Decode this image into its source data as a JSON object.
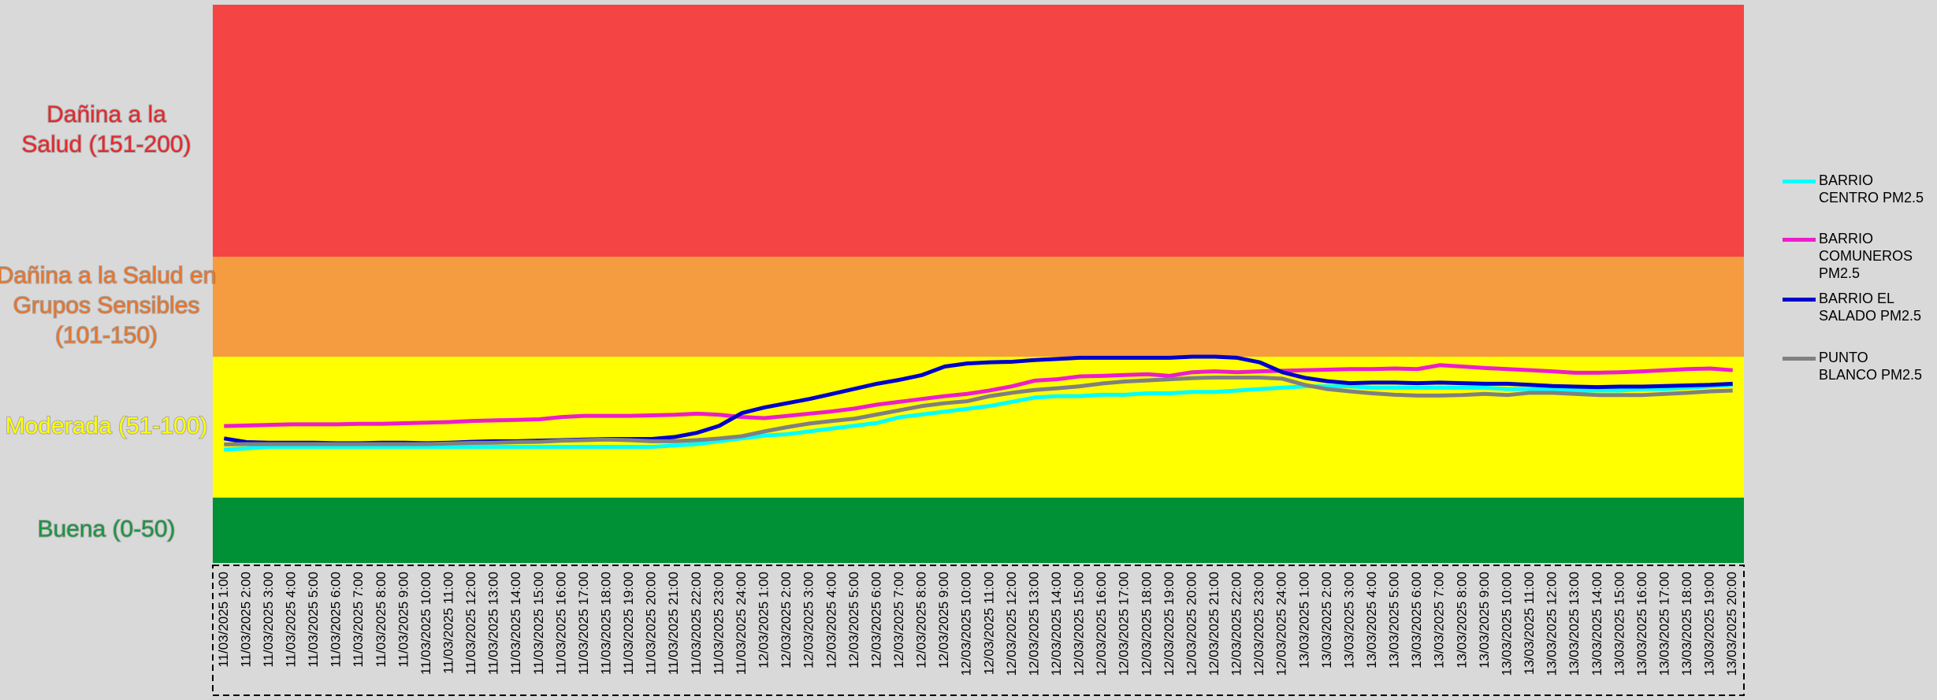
{
  "chart_data": {
    "type": "line",
    "ylim": [
      0,
      200
    ],
    "bands": [
      {
        "label": [
          "Buena (0-50)"
        ],
        "to": 50,
        "color": "#009036",
        "text_color": "#1a9440"
      },
      {
        "label": [
          "Moderada (51-100)"
        ],
        "to": 100,
        "color": "#ffff00",
        "text_color": "#ffff00"
      },
      {
        "label": [
          "Dañina a la Salud en",
          "Grupos Sensibles",
          "(101-150)"
        ],
        "to": 150,
        "color": "#f59b40",
        "text_color": "#e8742a"
      },
      {
        "label": [
          "Dañina a la",
          "Salud (151-200)"
        ],
        "to": 200,
        "color": "#f44444",
        "text_color": "#e8262a"
      }
    ],
    "categories": [
      "11/03/2025 1:00",
      "11/03/2025 2:00",
      "11/03/2025 3:00",
      "11/03/2025 4:00",
      "11/03/2025 5:00",
      "11/03/2025 6:00",
      "11/03/2025 7:00",
      "11/03/2025 8:00",
      "11/03/2025 9:00",
      "11/03/2025 10:00",
      "11/03/2025 11:00",
      "11/03/2025 12:00",
      "11/03/2025 13:00",
      "11/03/2025 14:00",
      "11/03/2025 15:00",
      "11/03/2025 16:00",
      "11/03/2025 17:00",
      "11/03/2025 18:00",
      "11/03/2025 19:00",
      "11/03/2025 20:00",
      "11/03/2025 21:00",
      "11/03/2025 22:00",
      "11/03/2025 23:00",
      "11/03/2025 24:00",
      "12/03/2025 1:00",
      "12/03/2025 2:00",
      "12/03/2025 3:00",
      "12/03/2025 4:00",
      "12/03/2025 5:00",
      "12/03/2025 6:00",
      "12/03/2025 7:00",
      "12/03/2025 8:00",
      "12/03/2025 9:00",
      "12/03/2025 10:00",
      "12/03/2025 11:00",
      "12/03/2025 12:00",
      "12/03/2025 13:00",
      "12/03/2025 14:00",
      "12/03/2025 15:00",
      "12/03/2025 16:00",
      "12/03/2025 17:00",
      "12/03/2025 18:00",
      "12/03/2025 19:00",
      "12/03/2025 20:00",
      "12/03/2025 21:00",
      "12/03/2025 22:00",
      "12/03/2025 23:00",
      "12/03/2025 24:00",
      "13/03/2025 1:00",
      "13/03/2025 2:00",
      "13/03/2025 3:00",
      "13/03/2025 4:00",
      "13/03/2025 5:00",
      "13/03/2025 6:00",
      "13/03/2025 7:00",
      "13/03/2025 8:00",
      "13/03/2025 9:00",
      "13/03/2025 10:00",
      "13/03/2025 11:00",
      "13/03/2025 12:00",
      "13/03/2025 13:00",
      "13/03/2025 14:00",
      "13/03/2025 15:00",
      "13/03/2025 16:00",
      "13/03/2025 17:00",
      "13/03/2025 18:00",
      "13/03/2025 19:00",
      "13/03/2025 20:00"
    ],
    "series": [
      {
        "name": "BARRIO CENTRO PM2.5",
        "color": "#00ffff",
        "values": [
          67,
          67.5,
          68,
          68,
          68,
          68,
          68,
          68,
          68,
          68,
          68,
          68,
          68,
          68,
          68,
          68,
          68,
          68,
          68,
          68,
          68.5,
          69,
          70,
          71,
          72,
          72.5,
          73.5,
          74.5,
          75.5,
          76.5,
          78.5,
          79.5,
          80.5,
          81.5,
          82.5,
          84,
          85.5,
          86,
          86,
          86.5,
          86.5,
          87,
          87,
          87.5,
          87.5,
          88,
          88.5,
          89,
          89.5,
          89.5,
          89.5,
          89,
          89,
          89,
          89,
          89,
          89,
          88.5,
          88.5,
          88.5,
          88,
          88,
          88,
          88.5,
          88.5,
          89,
          89.5,
          90
        ]
      },
      {
        "name": "BARRIO COMUNEROS PM2.5",
        "color": "#ec1ecb",
        "values": [
          75.4,
          75.6,
          75.8,
          76,
          76,
          76,
          76.2,
          76.2,
          76.4,
          76.6,
          76.8,
          77.2,
          77.4,
          77.6,
          77.8,
          78.6,
          79,
          79,
          79,
          79.2,
          79.4,
          79.8,
          79.4,
          78.6,
          78.2,
          79,
          79.8,
          80.6,
          81.6,
          83,
          84,
          85,
          86,
          86.8,
          88,
          89.5,
          91.5,
          92,
          93,
          93.2,
          93.5,
          93.8,
          93.2,
          94.5,
          94.8,
          94.5,
          94.8,
          95,
          95.2,
          95.4,
          95.6,
          95.6,
          95.8,
          95.6,
          97,
          96.5,
          96,
          95.6,
          95.2,
          94.8,
          94.3,
          94.3,
          94.5,
          94.8,
          95.2,
          95.6,
          95.8,
          95.2
        ]
      },
      {
        "name": "BARRIO EL SALADO PM2.5",
        "color": "#0000cc",
        "values": [
          71,
          69.7,
          69.5,
          69.5,
          69.5,
          69.3,
          69.3,
          69.5,
          69.5,
          69.3,
          69.5,
          69.8,
          70,
          70,
          70.2,
          70.4,
          70.6,
          70.8,
          70.8,
          70.8,
          71.5,
          73,
          75.5,
          80,
          82,
          83.5,
          85,
          86.8,
          88.6,
          90.4,
          91.8,
          93.5,
          96.5,
          97.6,
          98,
          98.2,
          98.8,
          99.2,
          99.6,
          99.6,
          99.6,
          99.6,
          99.6,
          100,
          100,
          99.6,
          98,
          94.5,
          92.5,
          91.3,
          90.6,
          90.8,
          90.8,
          90.6,
          90.8,
          90.6,
          90.4,
          90.4,
          90,
          89.6,
          89.4,
          89.2,
          89.4,
          89.4,
          89.6,
          89.8,
          90,
          90.4
        ]
      },
      {
        "name": "PUNTO BLANCO PM2.5",
        "color": "#808080",
        "values": [
          68.9,
          69,
          69,
          69,
          69,
          69,
          69,
          69,
          69,
          69,
          69.2,
          69.4,
          69.5,
          69.7,
          69.8,
          70.2,
          70.4,
          70.6,
          70.4,
          70,
          70,
          70.4,
          71,
          71.8,
          73.5,
          75,
          76.3,
          77.2,
          78,
          79.5,
          81,
          82.5,
          83.5,
          84.2,
          86,
          87.2,
          88.2,
          88.8,
          89.5,
          90.5,
          91.2,
          91.6,
          92,
          92.4,
          92.6,
          92.6,
          92.6,
          92.2,
          90,
          88.5,
          87.7,
          87,
          86.5,
          86.2,
          86.2,
          86.4,
          86.8,
          86.4,
          87.2,
          87.2,
          86.8,
          86.4,
          86.4,
          86.4,
          86.8,
          87.2,
          87.7,
          88
        ]
      }
    ]
  }
}
